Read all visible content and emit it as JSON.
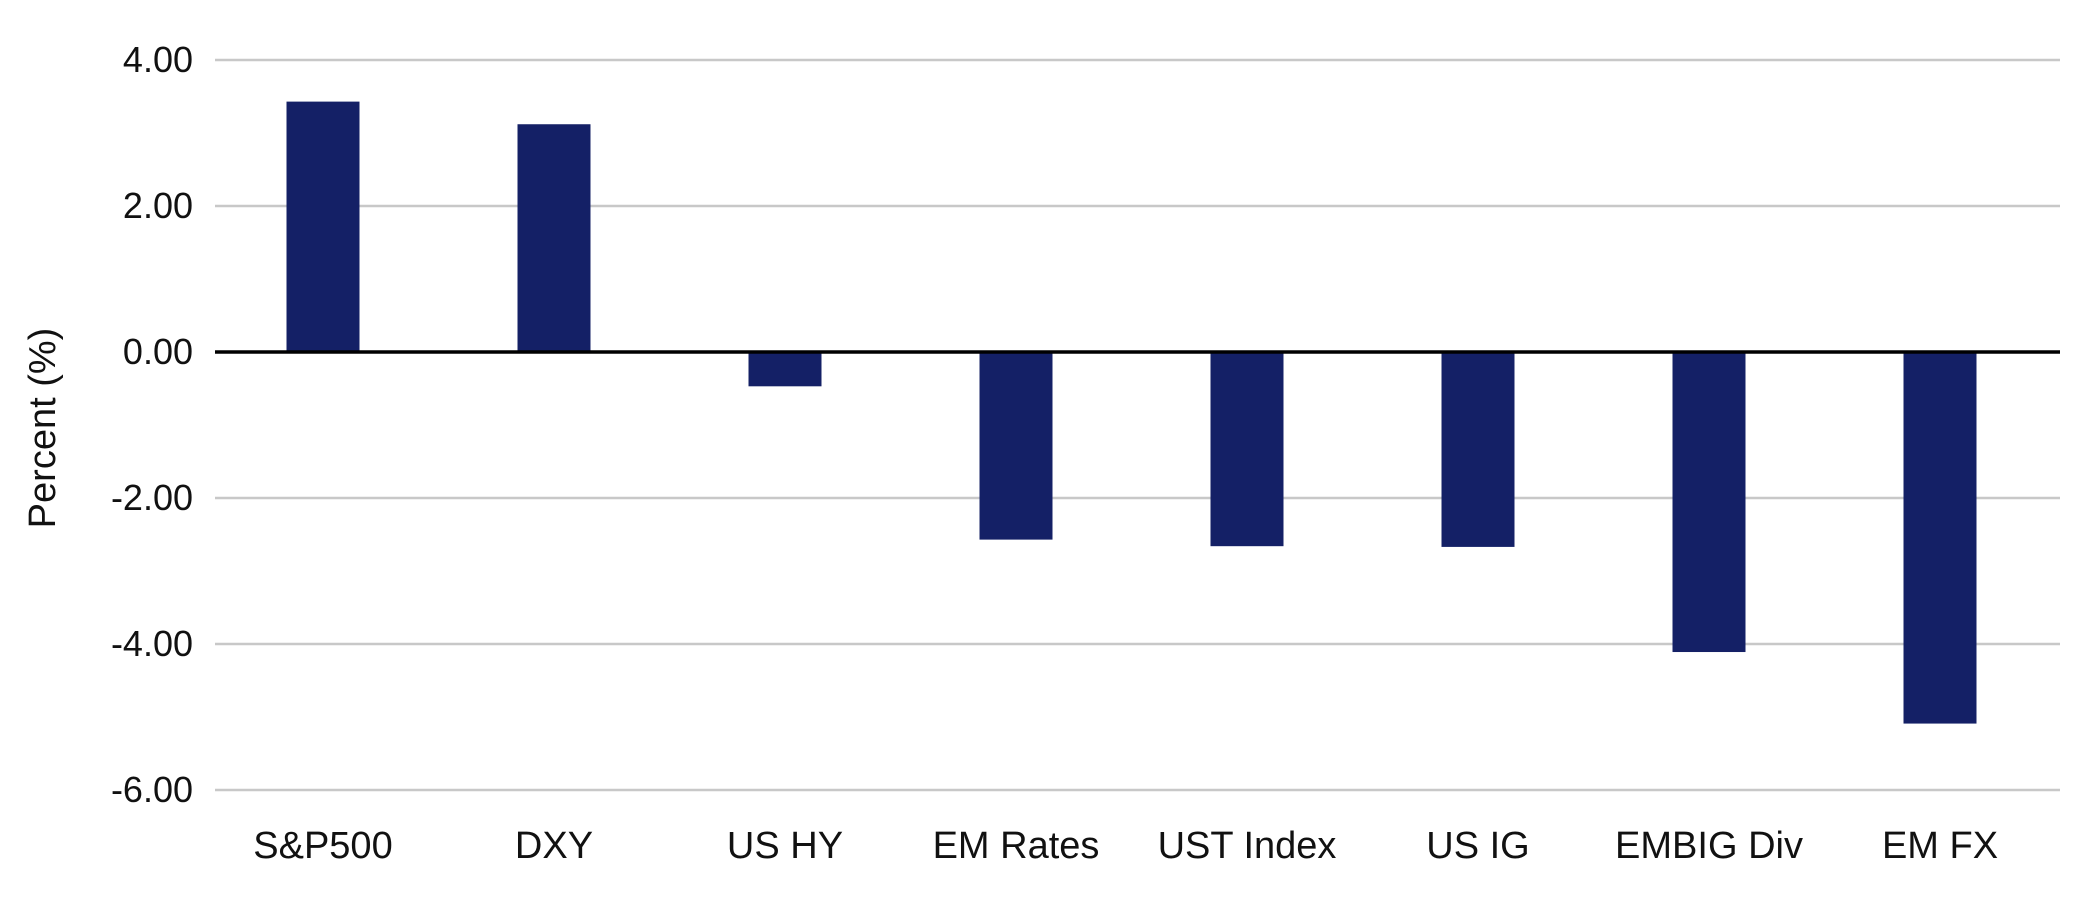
{
  "chart_data": {
    "type": "bar",
    "title": "",
    "xlabel": "",
    "ylabel": "Percent (%)",
    "categories": [
      "S&P500",
      "DXY",
      "US HY",
      "EM Rates",
      "UST Index",
      "US IG",
      "EMBIG Div",
      "EM FX"
    ],
    "values": [
      3.43,
      3.12,
      -0.47,
      -2.57,
      -2.66,
      -2.67,
      -4.11,
      -5.09
    ],
    "ylim": [
      -6,
      4
    ],
    "yticks": [
      "4.00",
      "2.00",
      "0.00",
      "-2.00",
      "-4.00",
      "-6.00"
    ],
    "grid": true,
    "legend": "none",
    "colors": {
      "bar": "#142066",
      "grid": "#c8c8c8",
      "zero_line": "#000000"
    }
  }
}
